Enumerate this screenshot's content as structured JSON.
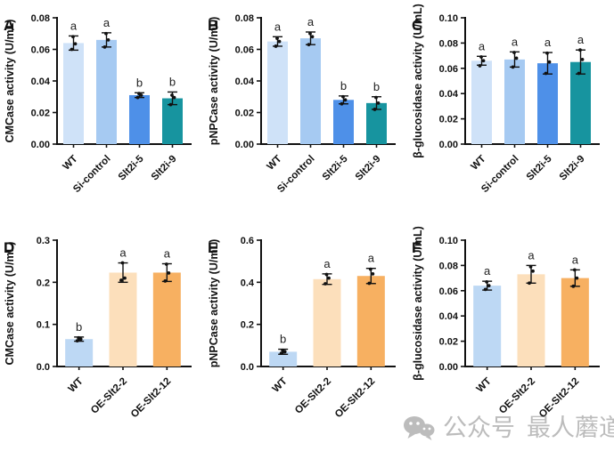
{
  "watermark": {
    "platform_label": "公众号",
    "account_name": "最人蘑道",
    "icon": "wechat-icon",
    "color": "#bcbcbc"
  },
  "sig_note_colors": {
    "text": "#222222",
    "axis": "#111111"
  },
  "chart_data": [
    {
      "panel": "A",
      "type": "bar",
      "title": "",
      "xlabel": "",
      "ylabel": "CMCase activity (U/mL)",
      "ylim": [
        0,
        0.08
      ],
      "grid": false,
      "legend": "none",
      "yticks": [
        {
          "value": 0.0,
          "label": "0.00"
        },
        {
          "value": 0.02,
          "label": "0.02"
        },
        {
          "value": 0.04,
          "label": "0.04"
        },
        {
          "value": 0.06,
          "label": "0.06"
        },
        {
          "value": 0.08,
          "label": "0.08"
        }
      ],
      "categories": [
        "WT",
        "Si-control",
        "Slt2i-5",
        "Slt2i-9"
      ],
      "values": [
        0.064,
        0.066,
        0.031,
        0.029
      ],
      "errors": [
        0.0045,
        0.0045,
        0.0015,
        0.004
      ],
      "sig_letters": [
        "a",
        "a",
        "b",
        "b"
      ],
      "points": [
        [
          0.06,
          0.0635,
          0.068
        ],
        [
          0.0615,
          0.066,
          0.07
        ],
        [
          0.0295,
          0.031,
          0.032
        ],
        [
          0.025,
          0.0295,
          0.031
        ]
      ],
      "bar_colors": [
        "#cfe2f8",
        "#a6caf2",
        "#4e90e8",
        "#17949f"
      ]
    },
    {
      "panel": "B",
      "type": "bar",
      "title": "",
      "xlabel": "",
      "ylabel": "pNPCase activity (U/mL)",
      "ylim": [
        0,
        0.08
      ],
      "grid": false,
      "legend": "none",
      "yticks": [
        {
          "value": 0.0,
          "label": "0.00"
        },
        {
          "value": 0.02,
          "label": "0.02"
        },
        {
          "value": 0.04,
          "label": "0.04"
        },
        {
          "value": 0.06,
          "label": "0.06"
        },
        {
          "value": 0.08,
          "label": "0.08"
        }
      ],
      "categories": [
        "WT",
        "Si-control",
        "Slt2i-5",
        "Slt2i-9"
      ],
      "values": [
        0.065,
        0.067,
        0.028,
        0.026
      ],
      "errors": [
        0.003,
        0.004,
        0.0025,
        0.004
      ],
      "sig_letters": [
        "a",
        "a",
        "b",
        "b"
      ],
      "points": [
        [
          0.062,
          0.065,
          0.067
        ],
        [
          0.063,
          0.068,
          0.07
        ],
        [
          0.0255,
          0.028,
          0.03
        ],
        [
          0.022,
          0.026,
          0.0295
        ]
      ],
      "bar_colors": [
        "#cfe2f8",
        "#a6caf2",
        "#4e90e8",
        "#17949f"
      ]
    },
    {
      "panel": "C",
      "type": "bar",
      "title": "",
      "xlabel": "",
      "ylabel": "β-glucosidase activity (U/mL)",
      "ylim": [
        0,
        0.1
      ],
      "grid": false,
      "legend": "none",
      "yticks": [
        {
          "value": 0.0,
          "label": "0.00"
        },
        {
          "value": 0.02,
          "label": "0.02"
        },
        {
          "value": 0.04,
          "label": "0.04"
        },
        {
          "value": 0.06,
          "label": "0.06"
        },
        {
          "value": 0.08,
          "label": "0.08"
        },
        {
          "value": 0.1,
          "label": "0.10"
        }
      ],
      "categories": [
        "WT",
        "Si-control",
        "Slt2i-5",
        "Slt2i-9"
      ],
      "values": [
        0.066,
        0.067,
        0.064,
        0.065
      ],
      "errors": [
        0.0035,
        0.006,
        0.0085,
        0.0095
      ],
      "sig_letters": [
        "a",
        "a",
        "a",
        "a"
      ],
      "points": [
        [
          0.062,
          0.066,
          0.069
        ],
        [
          0.061,
          0.068,
          0.0725
        ],
        [
          0.056,
          0.065,
          0.072
        ],
        [
          0.056,
          0.067,
          0.0745
        ]
      ],
      "bar_colors": [
        "#cfe2f8",
        "#a6caf2",
        "#4e90e8",
        "#17949f"
      ]
    },
    {
      "panel": "D",
      "type": "bar",
      "title": "",
      "xlabel": "",
      "ylabel": "CMCase activity (U/mL)",
      "ylim": [
        0,
        0.3
      ],
      "grid": false,
      "legend": "none",
      "yticks": [
        {
          "value": 0.0,
          "label": "0.0"
        },
        {
          "value": 0.1,
          "label": "0.1"
        },
        {
          "value": 0.2,
          "label": "0.2"
        },
        {
          "value": 0.3,
          "label": "0.3"
        }
      ],
      "categories": [
        "WT",
        "OE-Slt2-2",
        "OE-Slt2-12"
      ],
      "values": [
        0.065,
        0.223,
        0.223
      ],
      "errors": [
        0.005,
        0.023,
        0.021
      ],
      "sig_letters": [
        "b",
        "a",
        "a"
      ],
      "points": [
        [
          0.061,
          0.065,
          0.068
        ],
        [
          0.205,
          0.21,
          0.246
        ],
        [
          0.203,
          0.222,
          0.243
        ]
      ],
      "bar_colors": [
        "#bdd8f4",
        "#fcdfbb",
        "#f7b061"
      ]
    },
    {
      "panel": "E",
      "type": "bar",
      "title": "",
      "xlabel": "",
      "ylabel": "pNPCase activity (U/mL)",
      "ylim": [
        0,
        0.6
      ],
      "grid": false,
      "legend": "none",
      "yticks": [
        {
          "value": 0.0,
          "label": "0.0"
        },
        {
          "value": 0.2,
          "label": "0.2"
        },
        {
          "value": 0.4,
          "label": "0.4"
        },
        {
          "value": 0.6,
          "label": "0.6"
        }
      ],
      "categories": [
        "WT",
        "OE-Slt2-2",
        "OE-Slt2-12"
      ],
      "values": [
        0.07,
        0.415,
        0.43
      ],
      "errors": [
        0.012,
        0.025,
        0.036
      ],
      "sig_letters": [
        "b",
        "a",
        "a"
      ],
      "points": [
        [
          0.063,
          0.07,
          0.077
        ],
        [
          0.393,
          0.42,
          0.437
        ],
        [
          0.395,
          0.44,
          0.462
        ]
      ],
      "bar_colors": [
        "#bdd8f4",
        "#fcdfbb",
        "#f7b061"
      ]
    },
    {
      "panel": "F",
      "type": "bar",
      "title": "",
      "xlabel": "",
      "ylabel": "β-glucosidase activity (U/mL)",
      "ylim": [
        0,
        0.1
      ],
      "grid": false,
      "legend": "none",
      "yticks": [
        {
          "value": 0.0,
          "label": "0.00"
        },
        {
          "value": 0.02,
          "label": "0.02"
        },
        {
          "value": 0.04,
          "label": "0.04"
        },
        {
          "value": 0.06,
          "label": "0.06"
        },
        {
          "value": 0.08,
          "label": "0.08"
        },
        {
          "value": 0.1,
          "label": "0.10"
        }
      ],
      "categories": [
        "WT",
        "OE-Slt2-2",
        "OE-Slt2-12"
      ],
      "values": [
        0.064,
        0.073,
        0.07
      ],
      "errors": [
        0.0035,
        0.007,
        0.0065
      ],
      "sig_letters": [
        "a",
        "a",
        "a"
      ],
      "points": [
        [
          0.061,
          0.064,
          0.067
        ],
        [
          0.066,
          0.0755,
          0.079
        ],
        [
          0.0635,
          0.07,
          0.0765
        ]
      ],
      "bar_colors": [
        "#bdd8f4",
        "#fcdfbb",
        "#f7b061"
      ]
    }
  ]
}
